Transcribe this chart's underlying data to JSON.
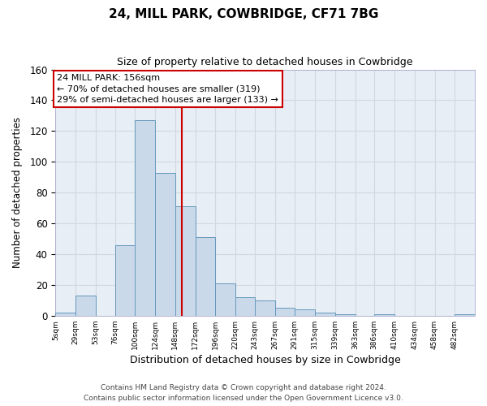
{
  "title": "24, MILL PARK, COWBRIDGE, CF71 7BG",
  "subtitle": "Size of property relative to detached houses in Cowbridge",
  "xlabel": "Distribution of detached houses by size in Cowbridge",
  "ylabel": "Number of detached properties",
  "bar_color": "#c9d9ea",
  "bar_edge_color": "#6699bb",
  "plot_bg_color": "#e8eef5",
  "fig_bg_color": "#ffffff",
  "grid_color": "#d0d8e0",
  "bin_labels": [
    "5sqm",
    "29sqm",
    "53sqm",
    "76sqm",
    "100sqm",
    "124sqm",
    "148sqm",
    "172sqm",
    "196sqm",
    "220sqm",
    "243sqm",
    "267sqm",
    "291sqm",
    "315sqm",
    "339sqm",
    "363sqm",
    "386sqm",
    "410sqm",
    "434sqm",
    "458sqm",
    "482sqm"
  ],
  "bin_edges": [
    5,
    29,
    53,
    76,
    100,
    124,
    148,
    172,
    196,
    220,
    243,
    267,
    291,
    315,
    339,
    363,
    386,
    410,
    434,
    458,
    482,
    506
  ],
  "bar_heights": [
    2,
    13,
    0,
    46,
    127,
    93,
    71,
    51,
    21,
    12,
    10,
    5,
    4,
    2,
    1,
    0,
    1,
    0,
    0,
    0,
    1
  ],
  "vline_x": 156,
  "vline_color": "#cc0000",
  "annotation_text": "24 MILL PARK: 156sqm\n← 70% of detached houses are smaller (319)\n29% of semi-detached houses are larger (133) →",
  "annotation_box_edge": "#cc0000",
  "ylim": [
    0,
    160
  ],
  "yticks": [
    0,
    20,
    40,
    60,
    80,
    100,
    120,
    140,
    160
  ],
  "footer_line1": "Contains HM Land Registry data © Crown copyright and database right 2024.",
  "footer_line2": "Contains public sector information licensed under the Open Government Licence v3.0."
}
